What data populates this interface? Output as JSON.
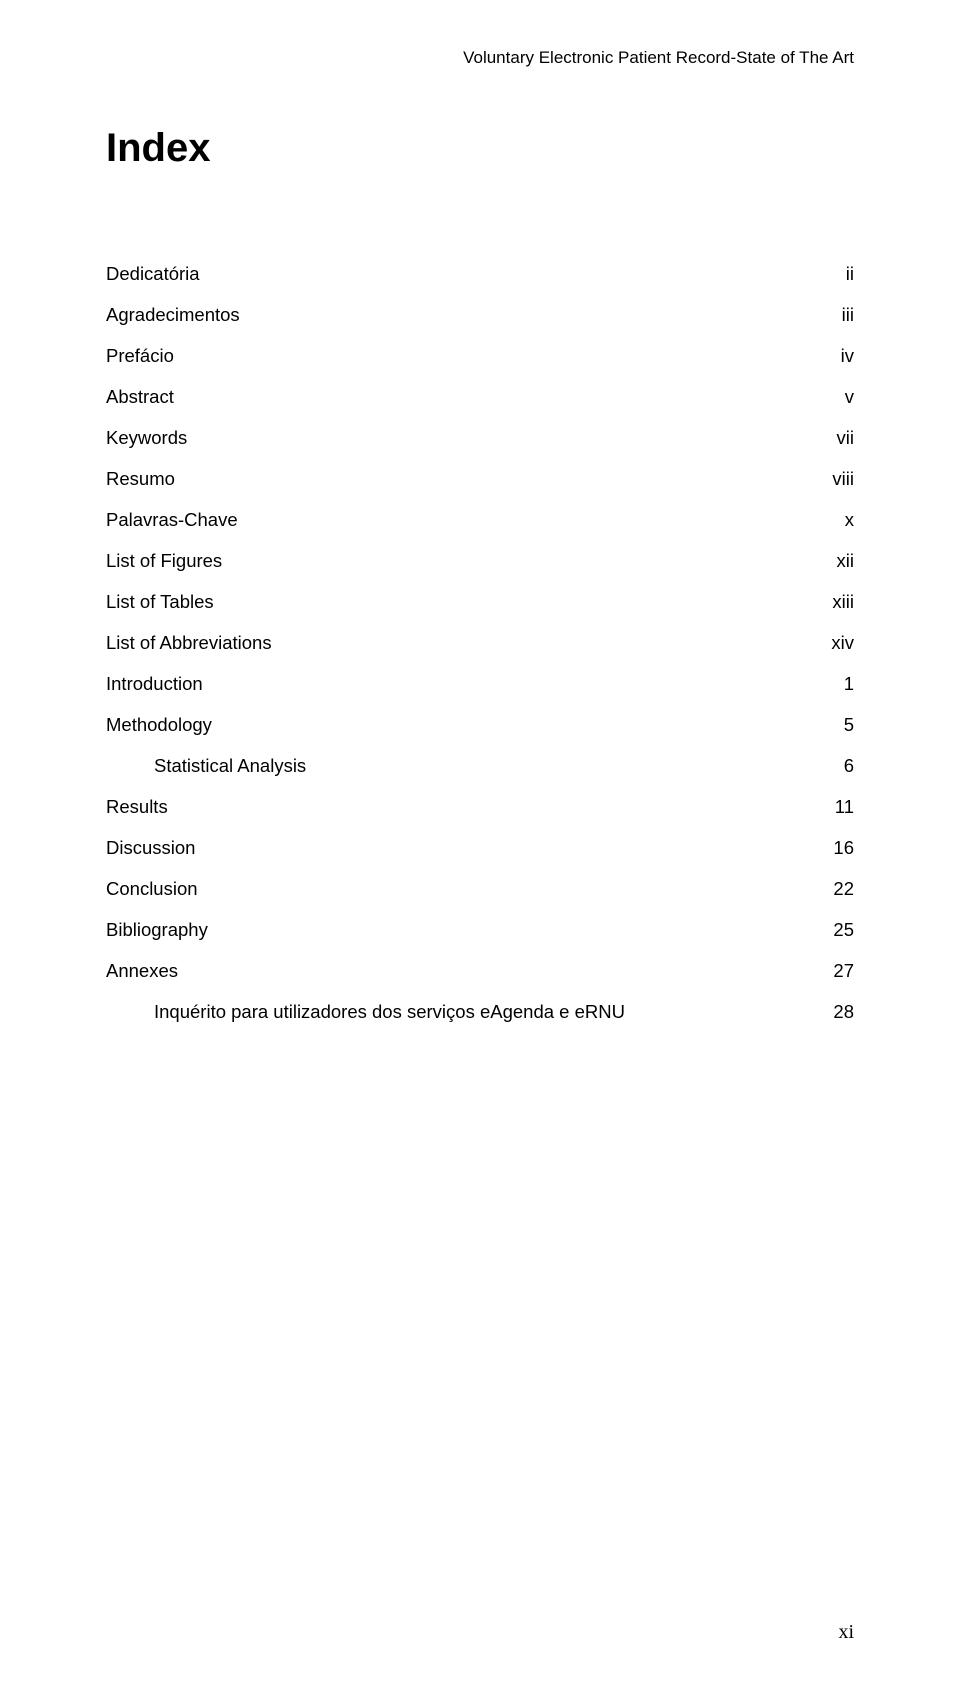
{
  "running_head": "Voluntary Electronic Patient Record-State of The Art",
  "title": "Index",
  "toc": [
    {
      "label": "Dedicatória",
      "page": "ii",
      "indent": false
    },
    {
      "label": "Agradecimentos",
      "page": "iii",
      "indent": false
    },
    {
      "label": "Prefácio",
      "page": "iv",
      "indent": false
    },
    {
      "label": "Abstract",
      "page": "v",
      "indent": false
    },
    {
      "label": "Keywords",
      "page": "vii",
      "indent": false
    },
    {
      "label": "Resumo",
      "page": "viii",
      "indent": false
    },
    {
      "label": "Palavras-Chave",
      "page": "x",
      "indent": false
    },
    {
      "label": "List of Figures",
      "page": "xii",
      "indent": false
    },
    {
      "label": "List of Tables",
      "page": "xiii",
      "indent": false
    },
    {
      "label": "List of Abbreviations",
      "page": "xiv",
      "indent": false
    },
    {
      "label": "Introduction",
      "page": "1",
      "indent": false
    },
    {
      "label": "Methodology",
      "page": "5",
      "indent": false
    },
    {
      "label": "Statistical Analysis",
      "page": "6",
      "indent": true
    },
    {
      "label": "Results",
      "page": "11",
      "indent": false
    },
    {
      "label": "Discussion",
      "page": "16",
      "indent": false
    },
    {
      "label": "Conclusion",
      "page": "22",
      "indent": false
    },
    {
      "label": "Bibliography",
      "page": "25",
      "indent": false
    },
    {
      "label": "Annexes",
      "page": "27",
      "indent": false
    },
    {
      "label": "Inquérito para utilizadores dos serviços eAgenda e eRNU",
      "page": "28",
      "indent": true
    }
  ],
  "page_number": "xi",
  "colors": {
    "background": "#ffffff",
    "text": "#000000"
  },
  "fonts": {
    "body": "Trebuchet MS",
    "page_number": "Times New Roman",
    "title_size_pt": 30,
    "body_size_pt": 14,
    "running_head_size_pt": 13,
    "page_number_size_pt": 15
  }
}
